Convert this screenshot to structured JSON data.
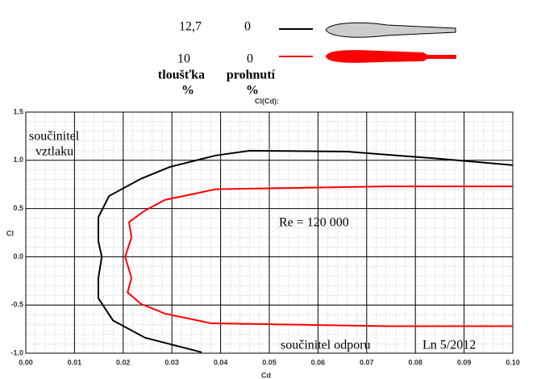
{
  "chart_data": {
    "type": "line",
    "plot_label": "Cl(Cd):",
    "x_label": "Cd",
    "y_label": "Cl",
    "legend": {
      "headers": [
        "tloušťka",
        "prohnutí"
      ],
      "units": [
        "%",
        "%"
      ]
    },
    "annotations": [
      "součinitel",
      "vztlaku",
      "Re = 120 000",
      "součinitel  odporu",
      "Ln 5/2012"
    ],
    "xlim": [
      0,
      0.1
    ],
    "ylim": [
      -1.0,
      1.5
    ],
    "xticks": [
      {
        "value": 0,
        "label": "0.00"
      },
      {
        "value": 0.01,
        "label": "0.01"
      },
      {
        "value": 0.02,
        "label": "0.02"
      },
      {
        "value": 0.03,
        "label": "0.03"
      },
      {
        "value": 0.04,
        "label": "0.04"
      },
      {
        "value": 0.05,
        "label": "0.05"
      },
      {
        "value": 0.06,
        "label": "0.06"
      },
      {
        "value": 0.07,
        "label": "0.07"
      },
      {
        "value": 0.08,
        "label": "0.08"
      },
      {
        "value": 0.09,
        "label": "0.09"
      },
      {
        "value": 0.1,
        "label": "0.10"
      }
    ],
    "yticks": [
      1.5,
      {
        "value": 1.0,
        "label": "1.0"
      },
      0.5,
      {
        "value": 0,
        "label": "0.0"
      },
      -0.5,
      {
        "value": -1.0,
        "label": "-1.0"
      }
    ],
    "grid": true,
    "series": [
      {
        "thickness": "12,7",
        "camber": "0",
        "color": "#000000",
        "x": [
          0.1,
          0.084,
          0.066,
          0.046,
          0.039,
          0.0295,
          0.0237,
          0.0171,
          0.0149,
          0.0149,
          0.0156,
          0.0149,
          0.0149,
          0.0179,
          0.0245,
          0.0361
        ],
        "values": [
          0.95,
          1.02,
          1.09,
          1.1,
          1.05,
          0.93,
          0.81,
          0.63,
          0.41,
          0.16,
          0.0,
          -0.22,
          -0.43,
          -0.66,
          -0.84,
          -0.99
        ]
      },
      {
        "thickness": "10",
        "camber": "0",
        "color": "#ff0000",
        "x": [
          0.1,
          0.074,
          0.039,
          0.0286,
          0.0245,
          0.0212,
          0.0217,
          0.0204,
          0.0217,
          0.0209,
          0.0237,
          0.0286,
          0.0381,
          0.0742,
          0.1
        ],
        "values": [
          0.73,
          0.73,
          0.7,
          0.59,
          0.48,
          0.36,
          0.2,
          0.0,
          -0.22,
          -0.37,
          -0.49,
          -0.59,
          -0.69,
          -0.72,
          -0.72
        ]
      }
    ]
  }
}
